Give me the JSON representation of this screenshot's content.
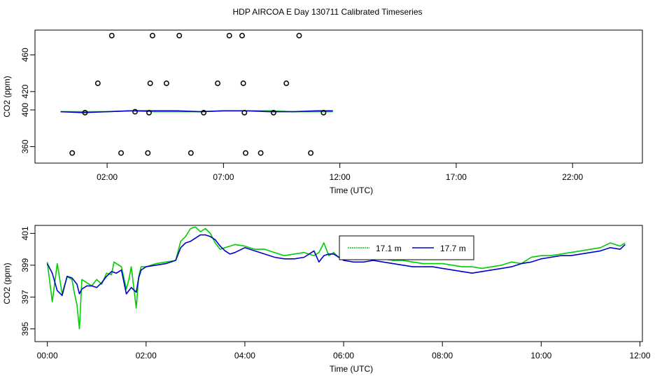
{
  "title": "HDP AIRCOA E  Day 130711  Calibrated Timeseries",
  "colors": {
    "green": "#00cc00",
    "blue": "#0000cc",
    "axis": "#000000"
  },
  "chart_data": [
    {
      "type": "scatter",
      "xlabel": "Time (UTC)",
      "ylabel": "CO2 (ppm)",
      "xlim": [
        -1.1,
        25
      ],
      "ylim": [
        342,
        487
      ],
      "x_ticks": [
        2,
        7,
        12,
        17,
        22
      ],
      "x_tick_labels": [
        "02:00",
        "07:00",
        "12:00",
        "17:00",
        "22:00"
      ],
      "y_ticks": [
        360,
        400,
        420,
        460
      ],
      "y_tick_labels": [
        "360",
        "400",
        "420",
        "460"
      ],
      "points": [
        {
          "x": 0.5,
          "y": 353
        },
        {
          "x": 1.05,
          "y": 397
        },
        {
          "x": 1.6,
          "y": 429
        },
        {
          "x": 2.2,
          "y": 481
        },
        {
          "x": 2.6,
          "y": 353
        },
        {
          "x": 3.2,
          "y": 398
        },
        {
          "x": 3.75,
          "y": 353
        },
        {
          "x": 3.8,
          "y": 397
        },
        {
          "x": 3.85,
          "y": 429
        },
        {
          "x": 3.95,
          "y": 481
        },
        {
          "x": 4.55,
          "y": 429
        },
        {
          "x": 5.1,
          "y": 481
        },
        {
          "x": 5.6,
          "y": 353
        },
        {
          "x": 6.15,
          "y": 397
        },
        {
          "x": 6.75,
          "y": 429
        },
        {
          "x": 7.25,
          "y": 481
        },
        {
          "x": 7.8,
          "y": 481
        },
        {
          "x": 7.85,
          "y": 429
        },
        {
          "x": 7.9,
          "y": 397
        },
        {
          "x": 7.95,
          "y": 353
        },
        {
          "x": 8.6,
          "y": 353
        },
        {
          "x": 9.15,
          "y": 397
        },
        {
          "x": 9.7,
          "y": 429
        },
        {
          "x": 10.25,
          "y": 481
        },
        {
          "x": 10.75,
          "y": 353
        },
        {
          "x": 11.3,
          "y": 397
        }
      ],
      "series": [
        {
          "name": "17.1 m",
          "color": "#00cc00",
          "x": [
            0,
            1,
            2,
            3,
            4,
            5,
            6,
            7,
            8,
            9,
            10,
            11,
            11.7
          ],
          "y": [
            398,
            398,
            398,
            399,
            398,
            398,
            398,
            399,
            399,
            399,
            398,
            398,
            398
          ]
        },
        {
          "name": "17.7 m",
          "color": "#0000cc",
          "x": [
            0,
            1,
            2,
            3,
            4,
            5,
            6,
            7,
            8,
            9,
            10,
            11,
            11.7
          ],
          "y": [
            398,
            397,
            398,
            399,
            399,
            399,
            398,
            399,
            399,
            398,
            398,
            399,
            399
          ]
        }
      ]
    },
    {
      "type": "line",
      "xlabel": "Time (UTC)",
      "ylabel": "CO2 (ppm)",
      "xlim": [
        -0.25,
        12.05
      ],
      "ylim": [
        394.2,
        401.5
      ],
      "x_ticks": [
        0,
        2,
        4,
        6,
        8,
        10,
        12
      ],
      "x_tick_labels": [
        "00:00",
        "02:00",
        "04:00",
        "06:00",
        "08:00",
        "10:00",
        "12:00"
      ],
      "y_ticks": [
        395,
        397,
        399,
        401
      ],
      "y_tick_labels": [
        "395",
        "397",
        "399",
        "401"
      ],
      "legend": "top-center",
      "series": [
        {
          "name": "17.1 m",
          "color": "#00cc00",
          "x": [
            0,
            0.1,
            0.2,
            0.3,
            0.4,
            0.5,
            0.55,
            0.6,
            0.65,
            0.7,
            0.8,
            0.9,
            1,
            1.1,
            1.2,
            1.3,
            1.35,
            1.4,
            1.5,
            1.6,
            1.65,
            1.7,
            1.8,
            1.85,
            1.9,
            2,
            2.2,
            2.4,
            2.6,
            2.7,
            2.8,
            2.9,
            3,
            3.1,
            3.2,
            3.3,
            3.4,
            3.5,
            3.6,
            3.7,
            3.8,
            4,
            4.2,
            4.4,
            4.6,
            4.8,
            5,
            5.2,
            5.4,
            5.5,
            5.6,
            5.7,
            5.8,
            5.9,
            6,
            6.2,
            6.4,
            6.6,
            6.8,
            7,
            7.2,
            7.4,
            7.6,
            7.8,
            8,
            8.2,
            8.4,
            8.6,
            8.8,
            9,
            9.2,
            9.4,
            9.6,
            9.8,
            10,
            10.2,
            10.4,
            10.6,
            10.8,
            11,
            11.2,
            11.4,
            11.6,
            11.7
          ],
          "y": [
            399.2,
            396.7,
            399.1,
            397.2,
            398.3,
            398.1,
            397.2,
            396.5,
            395,
            398.1,
            397.9,
            397.7,
            398.1,
            397.8,
            398.5,
            398.4,
            399.2,
            399.1,
            398.9,
            397.5,
            398.1,
            398.9,
            396.3,
            398.3,
            398.9,
            398.9,
            399.1,
            399.2,
            399.3,
            400.5,
            400.8,
            401.3,
            401.4,
            401.1,
            401.3,
            401,
            400.4,
            400,
            400.1,
            400.2,
            400.3,
            400.2,
            400,
            400,
            399.8,
            399.6,
            399.7,
            399.8,
            399.6,
            399.8,
            400.4,
            399.6,
            399.8,
            399.5,
            399.7,
            399.5,
            399.4,
            399.6,
            399.4,
            399.3,
            399.3,
            399.2,
            399.1,
            399.1,
            399.1,
            399,
            398.9,
            398.9,
            398.8,
            398.9,
            399,
            399.2,
            399.1,
            399.5,
            399.6,
            399.6,
            399.7,
            399.8,
            399.9,
            400,
            400.1,
            400.4,
            400.2,
            400.4
          ]
        },
        {
          "name": "17.7 m",
          "color": "#0000cc",
          "x": [
            0,
            0.1,
            0.2,
            0.3,
            0.4,
            0.5,
            0.6,
            0.65,
            0.7,
            0.8,
            0.9,
            1,
            1.1,
            1.2,
            1.3,
            1.4,
            1.5,
            1.6,
            1.7,
            1.8,
            1.85,
            1.9,
            2,
            2.2,
            2.4,
            2.6,
            2.7,
            2.8,
            2.9,
            3,
            3.1,
            3.2,
            3.3,
            3.4,
            3.5,
            3.6,
            3.7,
            3.8,
            4,
            4.2,
            4.4,
            4.6,
            4.8,
            5,
            5.2,
            5.4,
            5.5,
            5.6,
            5.7,
            5.8,
            5.9,
            6,
            6.2,
            6.4,
            6.6,
            6.8,
            7,
            7.2,
            7.4,
            7.6,
            7.8,
            8,
            8.2,
            8.4,
            8.6,
            8.8,
            9,
            9.2,
            9.4,
            9.6,
            9.8,
            10,
            10.2,
            10.4,
            10.6,
            10.8,
            11,
            11.2,
            11.4,
            11.6,
            11.7
          ],
          "y": [
            399.1,
            398.5,
            397.4,
            397.1,
            398.3,
            398.2,
            397.8,
            397.2,
            397.5,
            397.7,
            397.7,
            397.6,
            397.9,
            398.3,
            398.6,
            398.5,
            398.7,
            397.2,
            397.6,
            397.3,
            398.2,
            398.7,
            398.9,
            399,
            399.1,
            399.3,
            400.1,
            400.4,
            400.5,
            400.7,
            400.9,
            400.9,
            400.8,
            400.6,
            400.2,
            399.9,
            399.7,
            399.8,
            400.1,
            399.9,
            399.7,
            399.5,
            399.4,
            399.4,
            399.5,
            399.9,
            399.2,
            399.6,
            399.7,
            399.7,
            399.5,
            399.3,
            399.2,
            399.2,
            399.3,
            399.2,
            399.1,
            399,
            398.9,
            398.9,
            398.9,
            398.8,
            398.7,
            398.6,
            398.5,
            398.6,
            398.7,
            398.8,
            398.9,
            399.1,
            399.2,
            399.4,
            399.5,
            399.6,
            399.6,
            399.7,
            399.8,
            399.9,
            400.1,
            400,
            400.3
          ]
        }
      ]
    }
  ]
}
